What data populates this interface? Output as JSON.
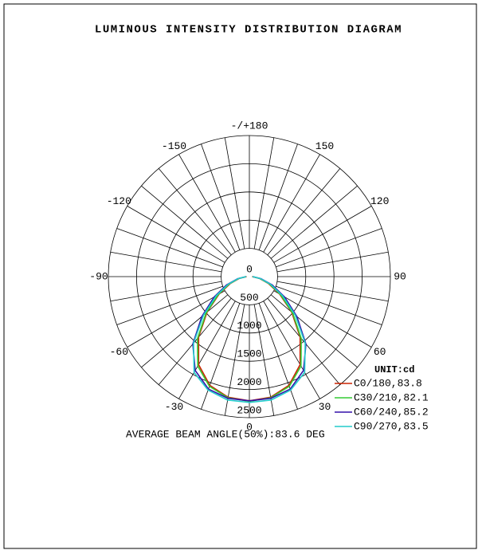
{
  "chart_data": {
    "type": "polar",
    "title": "LUMINOUS INTENSITY DISTRIBUTION DIAGRAM",
    "legend_title": "UNIT:cd",
    "annotation": "AVERAGE BEAM ANGLE(50%):83.6 DEG",
    "x": [
      -90,
      -80,
      -70,
      -60,
      -50,
      -40,
      -30,
      -20,
      -10,
      0,
      10,
      20,
      30,
      40,
      50,
      60,
      70,
      80,
      90
    ],
    "series": [
      {
        "name": "C0/180,83.8",
        "color": "#cc2200",
        "values": [
          50,
          180,
          360,
          620,
          980,
          1400,
          1800,
          2050,
          2170,
          2200,
          2170,
          2050,
          1800,
          1400,
          980,
          620,
          360,
          180,
          50
        ]
      },
      {
        "name": "C30/210,82.1",
        "color": "#33cc33",
        "values": [
          55,
          190,
          380,
          640,
          1000,
          1430,
          1830,
          2070,
          2180,
          2210,
          2180,
          2070,
          1830,
          1430,
          1000,
          640,
          380,
          190,
          55
        ]
      },
      {
        "name": "C60/240,85.2",
        "color": "#3311aa",
        "values": [
          60,
          210,
          430,
          720,
          1100,
          1560,
          1920,
          2120,
          2190,
          2200,
          2190,
          2120,
          1920,
          1560,
          1100,
          720,
          430,
          210,
          60
        ]
      },
      {
        "name": "C90/270,83.5",
        "color": "#22cccc",
        "values": [
          60,
          200,
          400,
          680,
          1060,
          1540,
          1960,
          2140,
          2220,
          2230,
          2220,
          2140,
          1960,
          1540,
          1060,
          680,
          400,
          200,
          60
        ]
      }
    ],
    "rlim": [
      0,
      2500
    ],
    "rticks": [
      0,
      500,
      1000,
      1500,
      2000,
      2500
    ],
    "theta_ticks": [
      0,
      30,
      60,
      90,
      120,
      150,
      {
        "value": 180,
        "label": "-/+180"
      },
      -150,
      -120,
      -90,
      -60,
      -30
    ],
    "theta_grid_step": 10,
    "grid": true
  }
}
